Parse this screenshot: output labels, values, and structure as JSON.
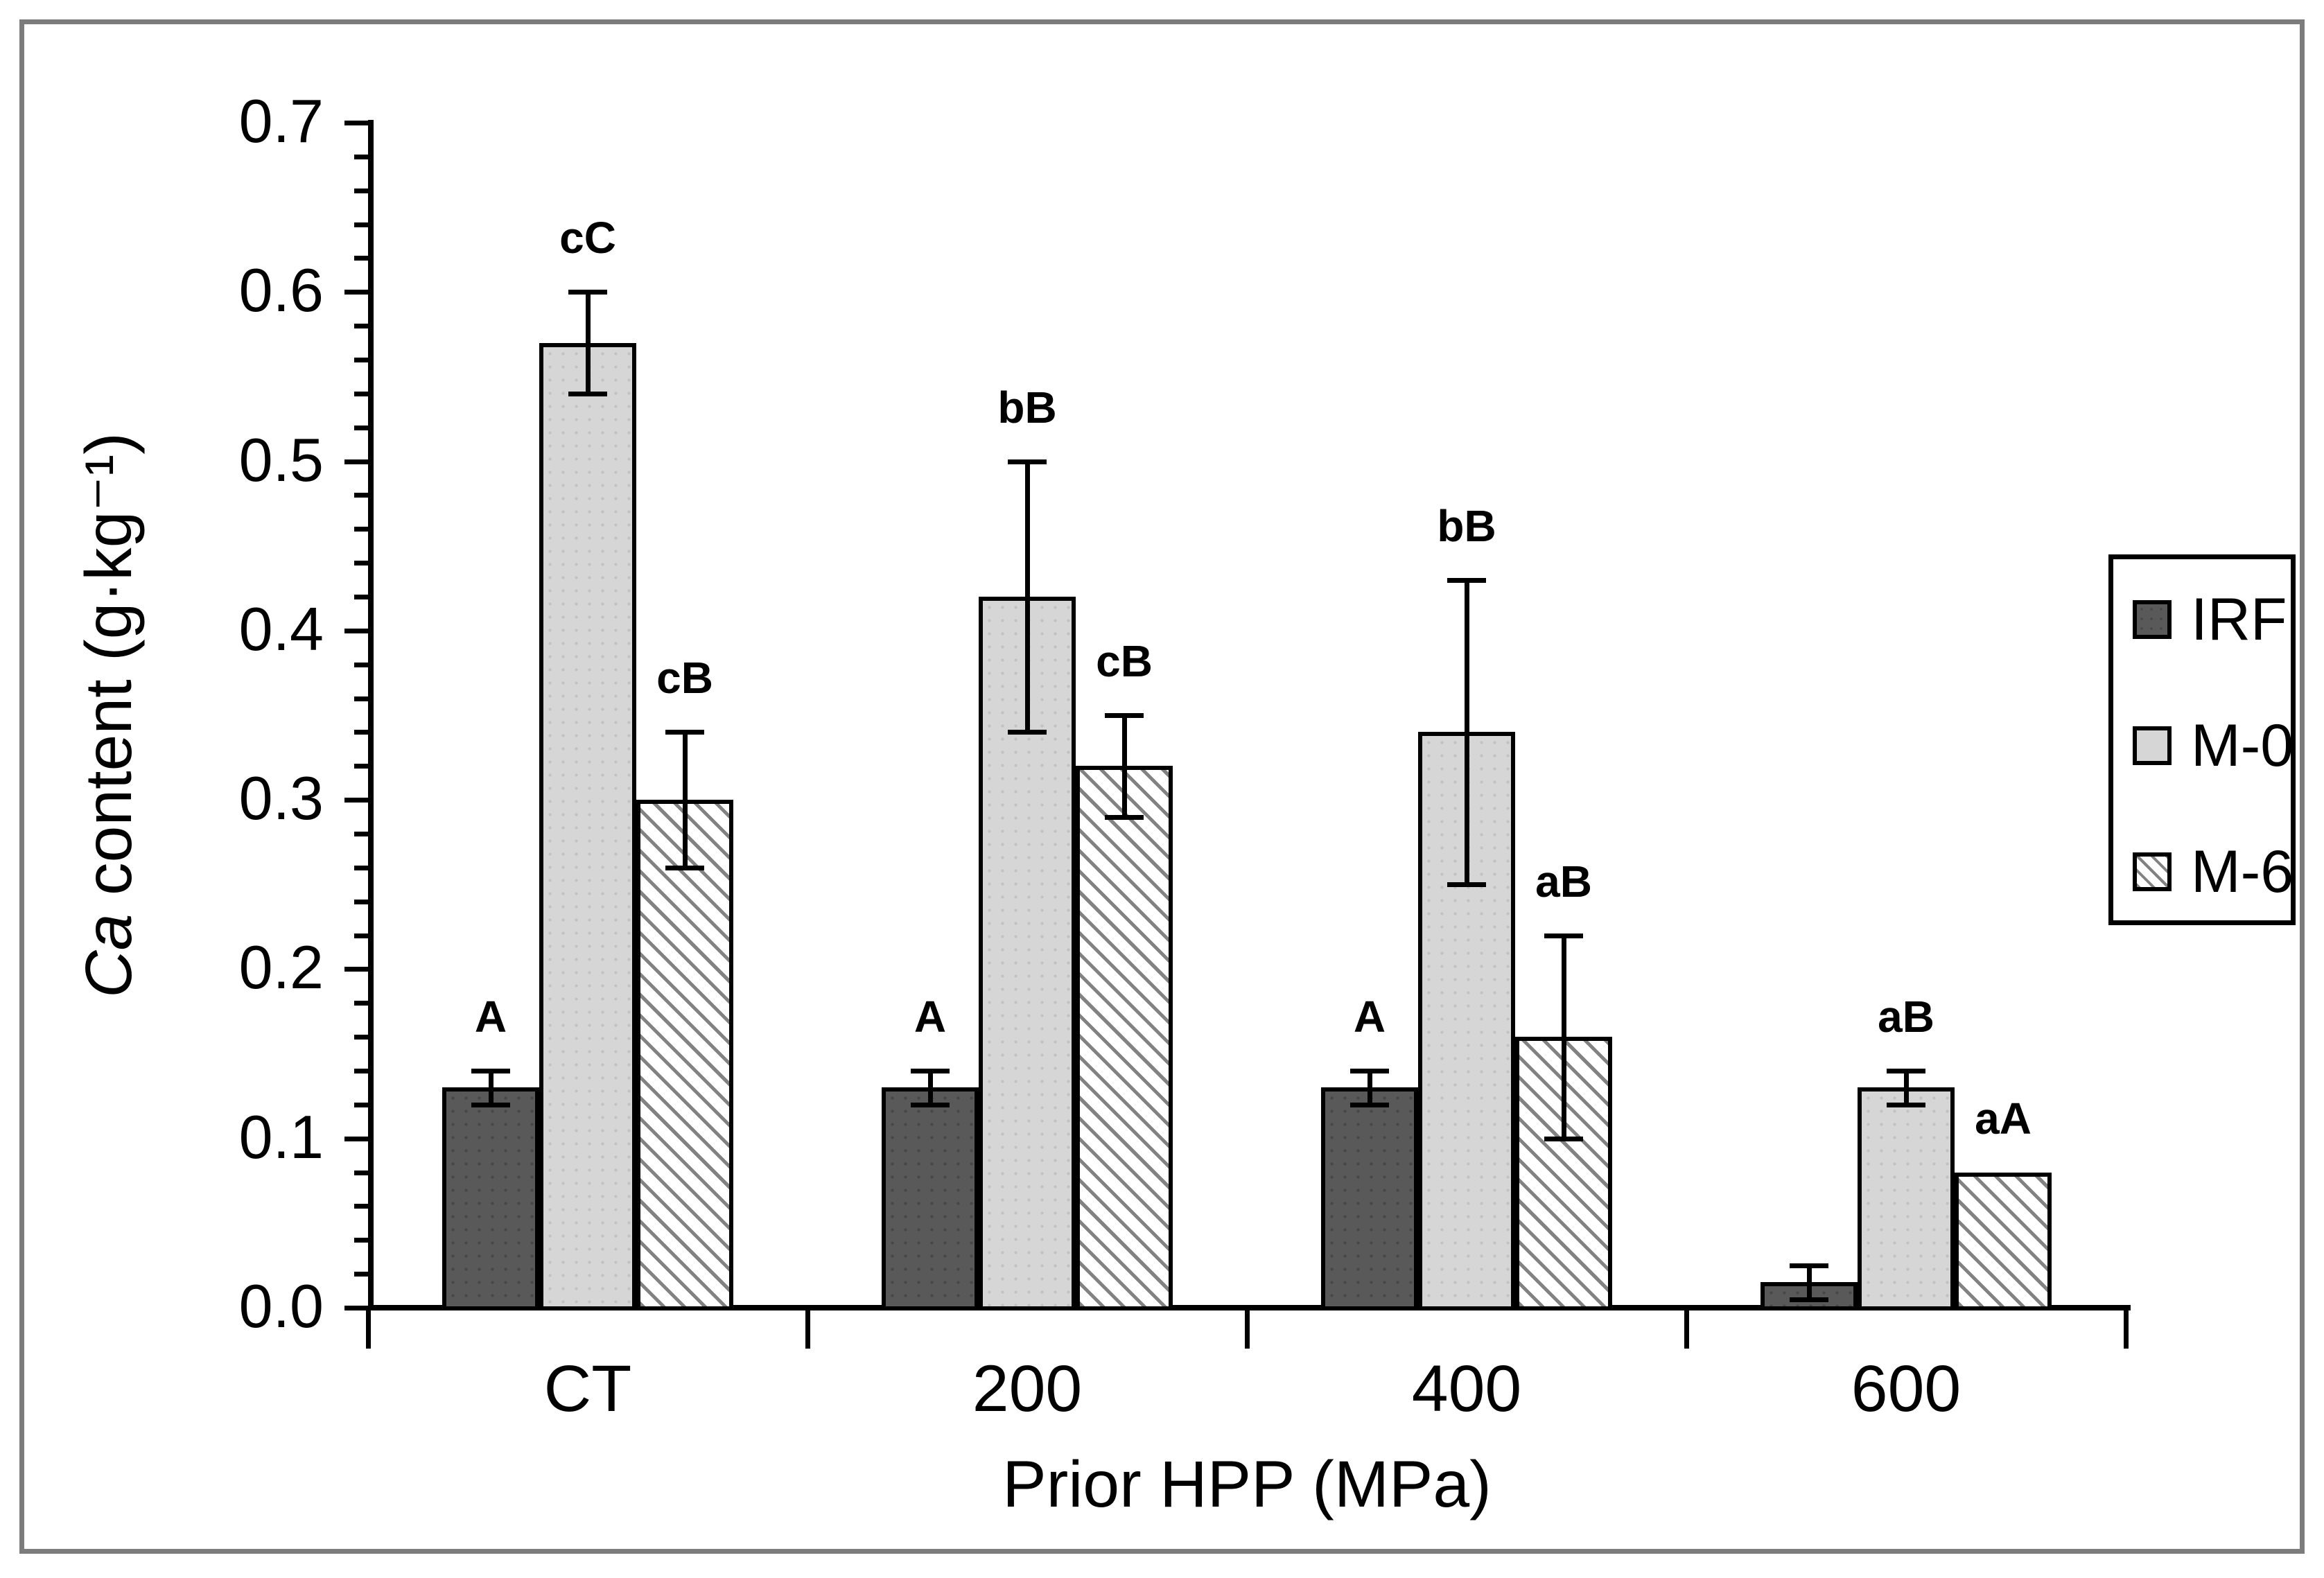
{
  "chart_data": {
    "type": "bar",
    "xlabel": "Prior HPP (MPa)",
    "ylabel": "Ca content (g·kg⁻¹)",
    "ylabel_parts": {
      "italic": "Ca",
      "rest": " content (g·kg⁻¹)"
    },
    "categories": [
      "CT",
      "200",
      "400",
      "600"
    ],
    "y_axis": {
      "min": 0.0,
      "max": 0.7,
      "major_step": 0.1,
      "minor_step": 0.02,
      "tick_labels": [
        "0.0",
        "0.1",
        "0.2",
        "0.3",
        "0.4",
        "0.5",
        "0.6",
        "0.7"
      ]
    },
    "grid": false,
    "legend": {
      "position": "right",
      "entries": [
        "IRF",
        "M-0",
        "M-6"
      ]
    },
    "series": [
      {
        "key": "irf",
        "name": "IRF",
        "values": [
          0.13,
          0.13,
          0.13,
          0.015
        ],
        "errors": [
          0.01,
          0.01,
          0.01,
          0.01
        ],
        "labels": [
          "A",
          "A",
          "A",
          ""
        ]
      },
      {
        "key": "m0",
        "name": "M-0",
        "values": [
          0.57,
          0.42,
          0.34,
          0.13
        ],
        "errors": [
          0.03,
          0.08,
          0.09,
          0.01
        ],
        "labels": [
          "cC",
          "bB",
          "bB",
          "aB"
        ]
      },
      {
        "key": "m6",
        "name": "M-6",
        "values": [
          0.3,
          0.32,
          0.16,
          0.08
        ],
        "errors": [
          0.04,
          0.03,
          0.06,
          null
        ],
        "labels": [
          "cB",
          "cB",
          "aB",
          "aA"
        ]
      }
    ],
    "colors": {
      "irf_fill": "#595959",
      "m0_fill": "#d6d6d6",
      "m6_hatch_line": "#828282",
      "axis": "#000000",
      "frame_border": "#7c7c7c"
    }
  }
}
